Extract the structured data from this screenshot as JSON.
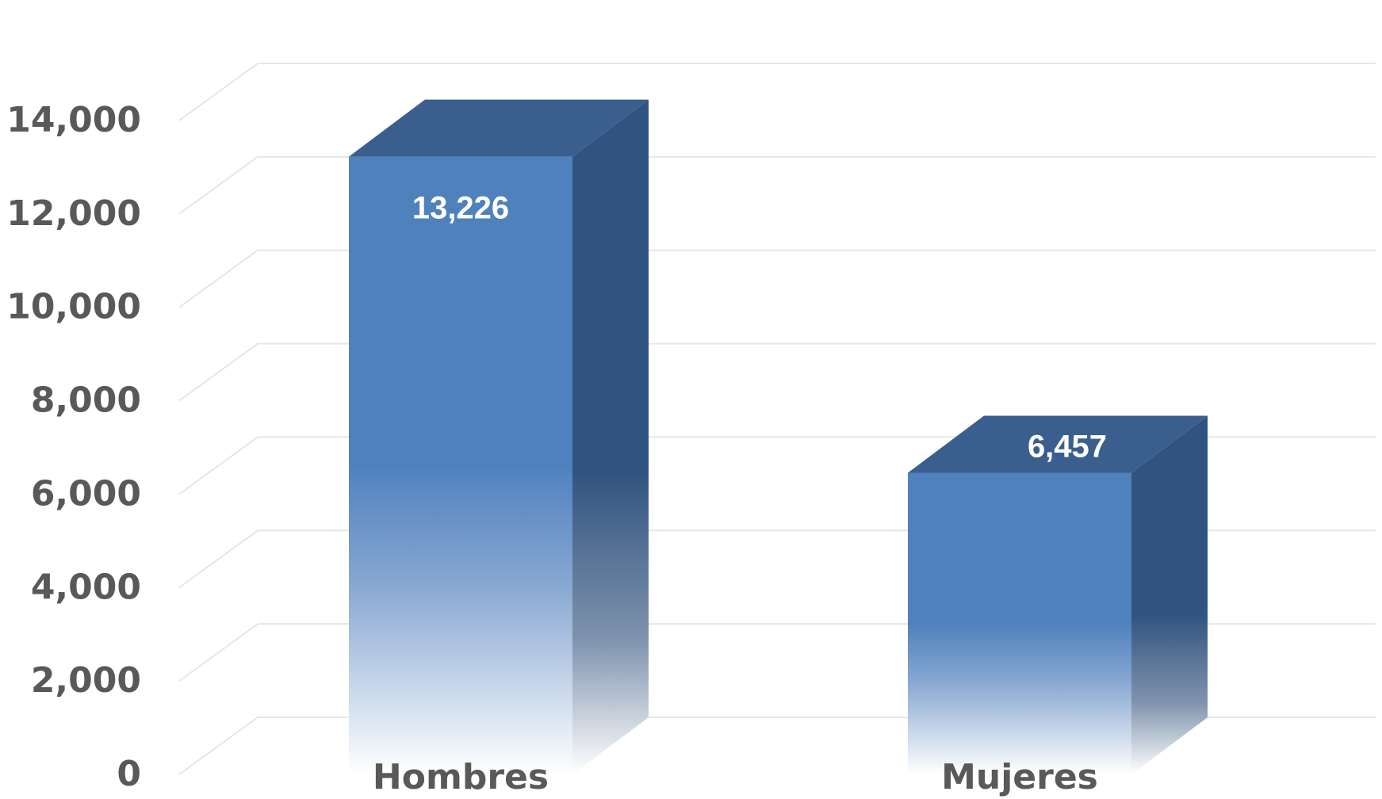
{
  "chart_data": {
    "type": "bar",
    "categories": [
      "Hombres",
      "Mujeres"
    ],
    "values": [
      13226,
      6457
    ],
    "value_labels": [
      "13,226",
      "6,457"
    ],
    "title": "",
    "xlabel": "",
    "ylabel": "",
    "ylim": [
      0,
      14000
    ],
    "yticks": [
      {
        "value": 0,
        "label": "0"
      },
      {
        "value": 2000,
        "label": "2,000"
      },
      {
        "value": 4000,
        "label": "4,000"
      },
      {
        "value": 6000,
        "label": "6,000"
      },
      {
        "value": 8000,
        "label": "8,000"
      },
      {
        "value": 10000,
        "label": "10,000"
      },
      {
        "value": 12000,
        "label": "12,000"
      },
      {
        "value": 14000,
        "label": "14,000"
      }
    ],
    "style": "3d-column",
    "grid": true,
    "legend": "none",
    "colors": {
      "front": "#4f81bd",
      "top": "#3a5f8f",
      "side": "#30537f",
      "grid": "#e6e6e6"
    }
  }
}
